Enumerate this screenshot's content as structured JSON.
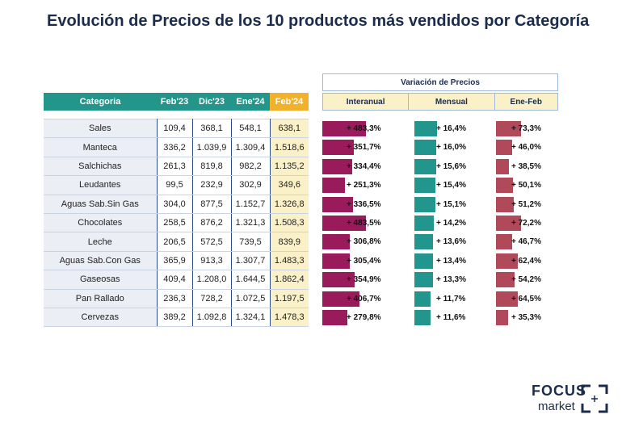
{
  "title": "Evolución de Precios de los 10 productos más vendidos por Categoría",
  "table": {
    "headers": [
      "Categoria",
      "Feb'23",
      "Dic'23",
      "Ene'24",
      "Feb'24"
    ],
    "rows": [
      {
        "categoria": "Sales",
        "feb23": "109,4",
        "dic23": "368,1",
        "ene24": "548,1",
        "feb24": "638,1"
      },
      {
        "categoria": "Manteca",
        "feb23": "336,2",
        "dic23": "1.039,9",
        "ene24": "1.309,4",
        "feb24": "1.518,6"
      },
      {
        "categoria": "Salchichas",
        "feb23": "261,3",
        "dic23": "819,8",
        "ene24": "982,2",
        "feb24": "1.135,2"
      },
      {
        "categoria": "Leudantes",
        "feb23": "99,5",
        "dic23": "232,9",
        "ene24": "302,9",
        "feb24": "349,6"
      },
      {
        "categoria": "Aguas Sab.Sin Gas",
        "feb23": "304,0",
        "dic23": "877,5",
        "ene24": "1.152,7",
        "feb24": "1.326,8"
      },
      {
        "categoria": "Chocolates",
        "feb23": "258,5",
        "dic23": "876,2",
        "ene24": "1.321,3",
        "feb24": "1.508,3"
      },
      {
        "categoria": "Leche",
        "feb23": "206,5",
        "dic23": "572,5",
        "ene24": "739,5",
        "feb24": "839,9"
      },
      {
        "categoria": "Aguas Sab.Con Gas",
        "feb23": "365,9",
        "dic23": "913,3",
        "ene24": "1.307,7",
        "feb24": "1.483,3"
      },
      {
        "categoria": "Gaseosas",
        "feb23": "409,4",
        "dic23": "1.208,0",
        "ene24": "1.644,5",
        "feb24": "1.862,4"
      },
      {
        "categoria": "Pan Rallado",
        "feb23": "236,3",
        "dic23": "728,2",
        "ene24": "1.072,5",
        "feb24": "1.197,5"
      },
      {
        "categoria": "Cervezas",
        "feb23": "389,2",
        "dic23": "1.092,8",
        "ene24": "1.324,1",
        "feb24": "1.478,3"
      }
    ]
  },
  "variacion": {
    "title": "Variación de Precios",
    "columns": [
      "Interanual",
      "Mensual",
      "Ene-Feb"
    ],
    "rows": [
      {
        "interanual": 483.3,
        "interanual_label": "+ 483,3%",
        "mensual": 16.4,
        "mensual_label": "+ 16,4%",
        "enefeb": 73.3,
        "enefeb_label": "+ 73,3%"
      },
      {
        "interanual": 351.7,
        "interanual_label": "+ 351,7%",
        "mensual": 16.0,
        "mensual_label": "+ 16,0%",
        "enefeb": 46.0,
        "enefeb_label": "+ 46,0%"
      },
      {
        "interanual": 334.4,
        "interanual_label": "+ 334,4%",
        "mensual": 15.6,
        "mensual_label": "+ 15,6%",
        "enefeb": 38.5,
        "enefeb_label": "+ 38,5%"
      },
      {
        "interanual": 251.3,
        "interanual_label": "+ 251,3%",
        "mensual": 15.4,
        "mensual_label": "+ 15,4%",
        "enefeb": 50.1,
        "enefeb_label": "+ 50,1%"
      },
      {
        "interanual": 336.5,
        "interanual_label": "+ 336,5%",
        "mensual": 15.1,
        "mensual_label": "+ 15,1%",
        "enefeb": 51.2,
        "enefeb_label": "+ 51,2%"
      },
      {
        "interanual": 483.5,
        "interanual_label": "+ 483,5%",
        "mensual": 14.2,
        "mensual_label": "+ 14,2%",
        "enefeb": 72.2,
        "enefeb_label": "+ 72,2%"
      },
      {
        "interanual": 306.8,
        "interanual_label": "+ 306,8%",
        "mensual": 13.6,
        "mensual_label": "+ 13,6%",
        "enefeb": 46.7,
        "enefeb_label": "+ 46,7%"
      },
      {
        "interanual": 305.4,
        "interanual_label": "+ 305,4%",
        "mensual": 13.4,
        "mensual_label": "+ 13,4%",
        "enefeb": 62.4,
        "enefeb_label": "+ 62,4%"
      },
      {
        "interanual": 354.9,
        "interanual_label": "+ 354,9%",
        "mensual": 13.3,
        "mensual_label": "+ 13,3%",
        "enefeb": 54.2,
        "enefeb_label": "+ 54,2%"
      },
      {
        "interanual": 406.7,
        "interanual_label": "+ 406,7%",
        "mensual": 11.7,
        "mensual_label": "+ 11,7%",
        "enefeb": 64.5,
        "enefeb_label": "+ 64,5%"
      },
      {
        "interanual": 279.8,
        "interanual_label": "+ 279,8%",
        "mensual": 11.6,
        "mensual_label": "+ 11,6%",
        "enefeb": 35.3,
        "enefeb_label": "+ 35,3%"
      }
    ]
  },
  "colors": {
    "header_teal": "#23958a",
    "header_highlight": "#f2b12b",
    "interanual_bar": "#9a1b5b",
    "mensual_bar": "#22958c",
    "enefeb_bar": "#b04a5a"
  },
  "logo": {
    "line1": "FOCUS",
    "line2": "market"
  }
}
